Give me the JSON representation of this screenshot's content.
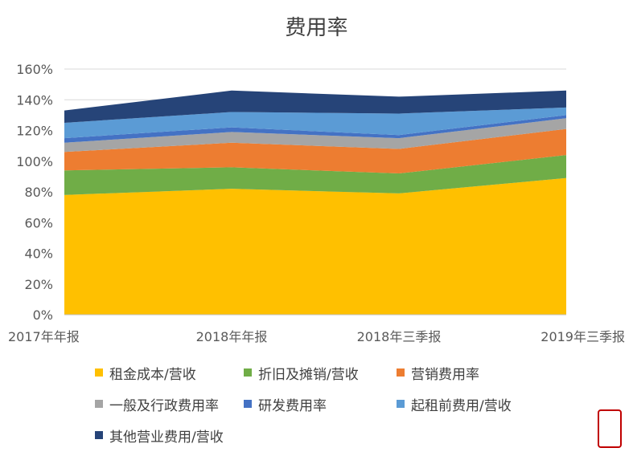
{
  "chart_data": {
    "type": "area",
    "stacked": true,
    "title": "费用率",
    "categories": [
      "2017年年报",
      "2018年年报",
      "2018年三季报",
      "2019年三季报"
    ],
    "ylim": [
      0,
      1.6
    ],
    "yticks": [
      "0%",
      "20%",
      "40%",
      "60%",
      "80%",
      "100%",
      "120%",
      "140%",
      "160%"
    ],
    "grid": true,
    "legend_position": "bottom",
    "series": [
      {
        "name": "租金成本/营收",
        "color": "#FFC000",
        "values": [
          0.78,
          0.82,
          0.79,
          0.89
        ]
      },
      {
        "name": "折旧及摊销/营收",
        "color": "#70AD47",
        "values": [
          0.16,
          0.14,
          0.13,
          0.15
        ]
      },
      {
        "name": "营销费用率",
        "color": "#ED7D31",
        "values": [
          0.12,
          0.16,
          0.16,
          0.17
        ]
      },
      {
        "name": "一般及行政费用率",
        "color": "#A5A5A5",
        "values": [
          0.06,
          0.07,
          0.07,
          0.07
        ]
      },
      {
        "name": "研发费用率",
        "color": "#4472C4",
        "values": [
          0.03,
          0.03,
          0.02,
          0.02
        ]
      },
      {
        "name": "起租前费用/营收",
        "color": "#5B9BD5",
        "values": [
          0.1,
          0.1,
          0.14,
          0.05
        ]
      },
      {
        "name": "其他营业费用/营收",
        "color": "#264478",
        "values": [
          0.08,
          0.14,
          0.11,
          0.11
        ]
      }
    ]
  }
}
